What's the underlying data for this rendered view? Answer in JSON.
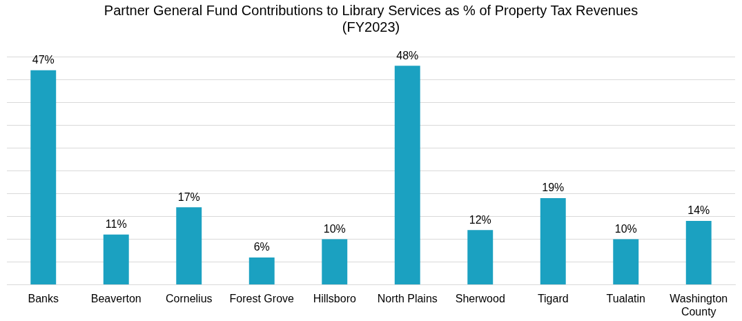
{
  "chart_data": {
    "type": "bar",
    "title": [
      "Partner General Fund Contributions to Library Services as % of Property Tax Revenues",
      "(FY2023)"
    ],
    "categories": [
      "Banks",
      "Beaverton",
      "Cornelius",
      "Forest Grove",
      "Hillsboro",
      "North Plains",
      "Sherwood",
      "Tigard",
      "Tualatin",
      "Washington County"
    ],
    "values": [
      47,
      11,
      17,
      6,
      10,
      48,
      12,
      19,
      10,
      14
    ],
    "value_labels": [
      "47%",
      "11%",
      "17%",
      "6%",
      "10%",
      "48%",
      "12%",
      "19%",
      "10%",
      "14%"
    ],
    "color": "#1ba1c1",
    "ylim": [
      0,
      50
    ],
    "yticks": [
      {
        "value": 0,
        "label": null
      },
      {
        "value": 5,
        "label": null
      },
      {
        "value": 10,
        "label": null
      },
      {
        "value": 15,
        "label": null
      },
      {
        "value": 20,
        "label": null
      },
      {
        "value": 25,
        "label": null
      },
      {
        "value": 30,
        "label": null
      },
      {
        "value": 35,
        "label": null
      },
      {
        "value": 40,
        "label": null
      },
      {
        "value": 45,
        "label": null
      },
      {
        "value": 50,
        "label": null
      }
    ],
    "grid": "y",
    "tick_labels": "x"
  }
}
